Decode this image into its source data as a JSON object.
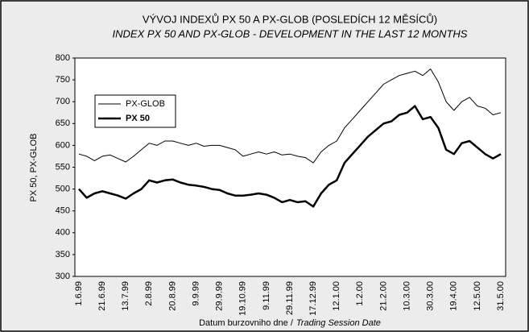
{
  "chart_data": {
    "type": "line",
    "title": "VÝVOJ INDEXŮ PX 50  A PX-GLOB (POSLEDÍCH 12 MĚSÍCŮ)",
    "subtitle": "INDEX PX 50 AND PX-GLOB - DEVELOPMENT IN THE LAST 12 MONTHS",
    "y_label": "PX 50, PX-GLOB",
    "x_label": [
      "Datum burzovniho dne /",
      "Trading Session Date"
    ],
    "categories": [
      "1.6.99",
      null,
      null,
      "21.6.99",
      null,
      null,
      "13.7.99",
      null,
      null,
      "2.8.99",
      null,
      null,
      "20.8.99",
      null,
      null,
      "9.9.99",
      null,
      null,
      "29.9.99",
      null,
      null,
      "19.10.99",
      null,
      null,
      "9.11.99",
      null,
      null,
      "29.11.99",
      null,
      null,
      "17.12.99",
      null,
      null,
      "12.1.00",
      null,
      null,
      "1.2.00",
      null,
      null,
      "21.2.00",
      null,
      null,
      "10.3.00",
      null,
      null,
      "30.3.00",
      null,
      null,
      "19.4.00",
      null,
      null,
      "12.5.00",
      null,
      null,
      "31.5.00"
    ],
    "series": [
      {
        "name": "PX-GLOB",
        "color": "#000000",
        "line_width": 1,
        "values": [
          580,
          575,
          565,
          575,
          578,
          570,
          562,
          575,
          590,
          605,
          600,
          610,
          610,
          605,
          600,
          605,
          598,
          600,
          600,
          595,
          590,
          575,
          580,
          585,
          580,
          585,
          578,
          580,
          575,
          572,
          560,
          585,
          600,
          610,
          640,
          660,
          680,
          700,
          720,
          740,
          750,
          760,
          765,
          770,
          760,
          775,
          745,
          700,
          680,
          700,
          710,
          690,
          685,
          670,
          675
        ]
      },
      {
        "name": "PX 50",
        "color": "#000000",
        "line_width": 2.5,
        "values": [
          500,
          480,
          490,
          495,
          490,
          485,
          478,
          490,
          500,
          520,
          515,
          520,
          522,
          515,
          510,
          508,
          505,
          500,
          498,
          490,
          485,
          485,
          487,
          490,
          487,
          480,
          470,
          475,
          470,
          472,
          460,
          490,
          510,
          520,
          560,
          580,
          600,
          620,
          635,
          650,
          655,
          670,
          675,
          690,
          660,
          665,
          640,
          590,
          580,
          605,
          610,
          595,
          580,
          570,
          580
        ]
      }
    ],
    "ylim": [
      300,
      800
    ],
    "yticks": [
      300,
      350,
      400,
      450,
      500,
      550,
      600,
      650,
      700,
      750,
      800
    ],
    "grid": false,
    "legend": "upper left"
  }
}
